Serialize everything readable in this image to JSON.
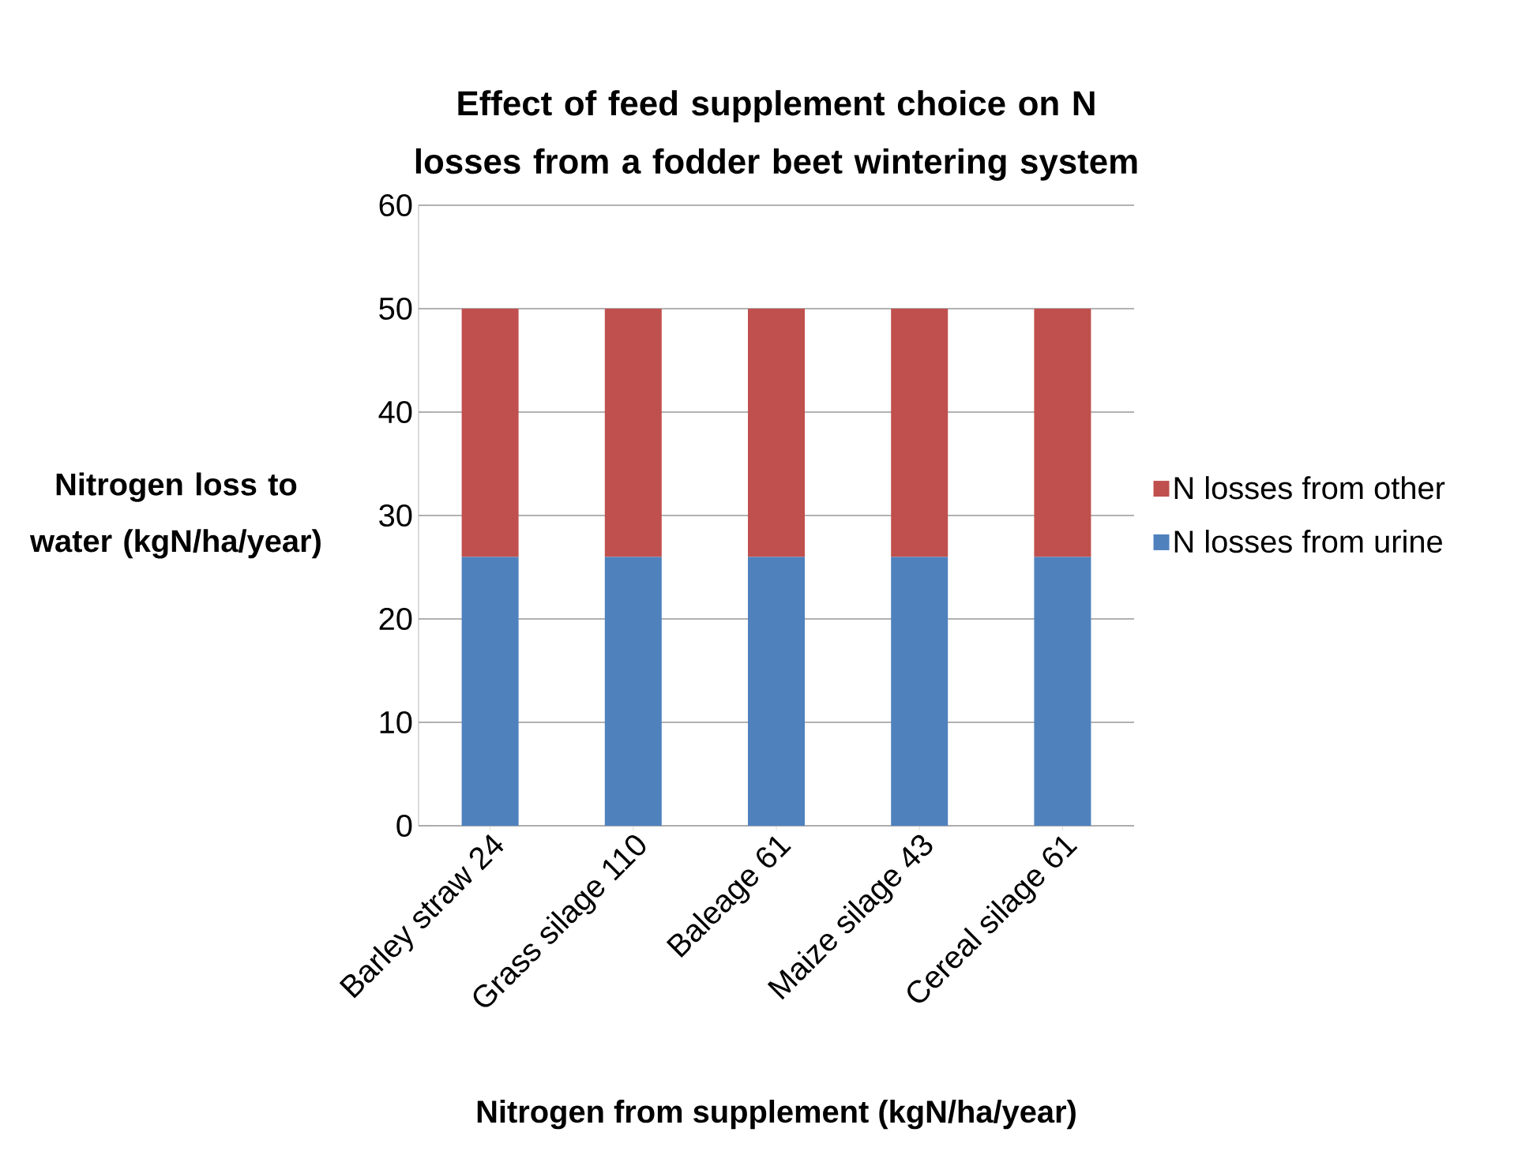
{
  "chart_data": {
    "type": "bar",
    "stacked": true,
    "title": "Effect of feed supplement choice on N losses from a fodder beet wintering system",
    "xlabel": "Nitrogen from supplement (kgN/ha/year)",
    "ylabel": "Nitrogen loss to water (kgN/ha/year)",
    "categories": [
      "Barley straw 24",
      "Grass silage 110",
      "Baleage 61",
      "Maize silage 43",
      "Cereal silage 61"
    ],
    "series": [
      {
        "name": "N losses from urine",
        "color": "#4f81bd",
        "values": [
          26,
          26,
          26,
          26,
          26
        ]
      },
      {
        "name": "N losses from other",
        "color": "#c0504d",
        "values": [
          24,
          24,
          24,
          24,
          24
        ]
      }
    ],
    "ylim": [
      0,
      60
    ],
    "yticks": [
      0,
      10,
      20,
      30,
      40,
      50,
      60
    ],
    "grid": "y",
    "legend": "right"
  }
}
